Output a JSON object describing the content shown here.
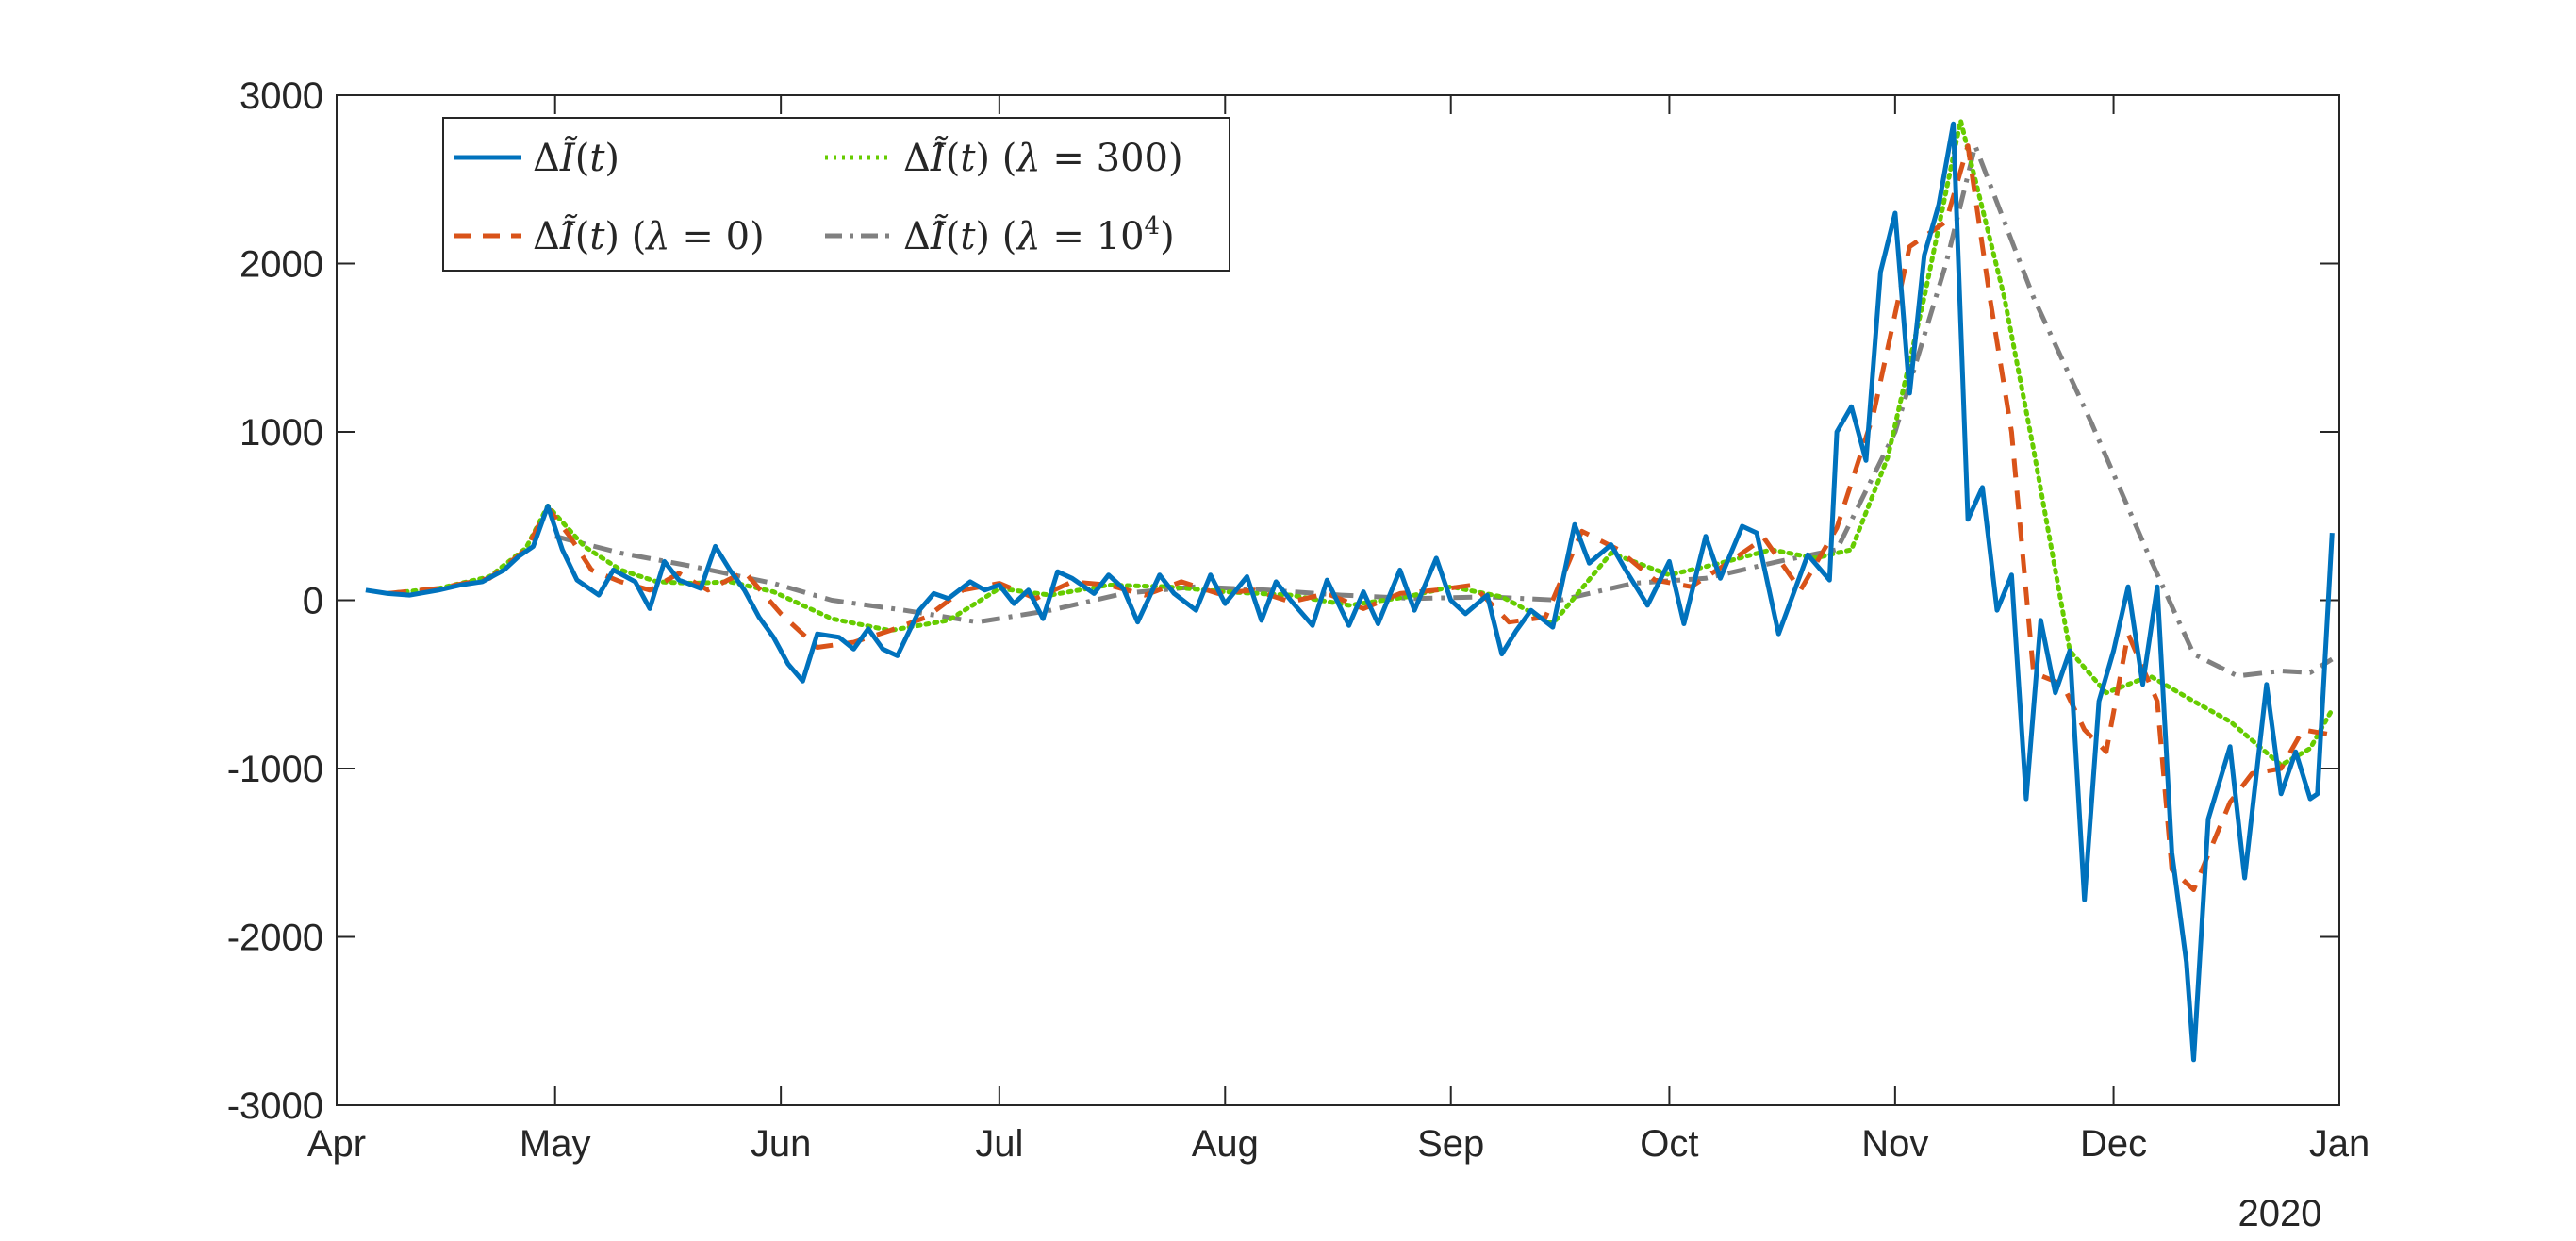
{
  "chart_data": {
    "type": "line",
    "title": "",
    "xlabel": "",
    "ylabel": "",
    "year_label": "2020",
    "x_axis": {
      "ticks": [
        "2020-04-01",
        "2020-05-01",
        "2020-06-01",
        "2020-07-01",
        "2020-08-01",
        "2020-09-01",
        "2020-10-01",
        "2020-11-01",
        "2020-12-01",
        "2021-01-01"
      ],
      "tick_labels": [
        "Apr",
        "May",
        "Jun",
        "Jul",
        "Aug",
        "Sep",
        "Oct",
        "Nov",
        "Dec",
        "Jan"
      ],
      "range": [
        "2020-04-01",
        "2021-01-01"
      ]
    },
    "y_axis": {
      "range": [
        -3000,
        3000
      ],
      "ticks": [
        -3000,
        -2000,
        -1000,
        0,
        1000,
        2000,
        3000
      ],
      "tick_labels": [
        "-3000",
        "-2000",
        "-1000",
        "0",
        "1000",
        "2000",
        "3000"
      ]
    },
    "grid": false,
    "legend_position": "top-left",
    "series": [
      {
        "name": "ΔĨ(t)",
        "color": "#0072BD",
        "style": "solid",
        "points": [
          [
            "2020-04-05",
            60
          ],
          [
            "2020-04-08",
            40
          ],
          [
            "2020-04-11",
            30
          ],
          [
            "2020-04-15",
            60
          ],
          [
            "2020-04-18",
            90
          ],
          [
            "2020-04-21",
            110
          ],
          [
            "2020-04-24",
            180
          ],
          [
            "2020-04-26",
            260
          ],
          [
            "2020-04-28",
            320
          ],
          [
            "2020-04-30",
            560
          ],
          [
            "2020-05-02",
            300
          ],
          [
            "2020-05-04",
            120
          ],
          [
            "2020-05-07",
            30
          ],
          [
            "2020-05-09",
            180
          ],
          [
            "2020-05-12",
            110
          ],
          [
            "2020-05-14",
            -50
          ],
          [
            "2020-05-16",
            230
          ],
          [
            "2020-05-18",
            120
          ],
          [
            "2020-05-21",
            70
          ],
          [
            "2020-05-23",
            320
          ],
          [
            "2020-05-25",
            180
          ],
          [
            "2020-05-27",
            60
          ],
          [
            "2020-05-29",
            -100
          ],
          [
            "2020-05-31",
            -220
          ],
          [
            "2020-06-02",
            -380
          ],
          [
            "2020-06-04",
            -480
          ],
          [
            "2020-06-06",
            -200
          ],
          [
            "2020-06-09",
            -220
          ],
          [
            "2020-06-11",
            -290
          ],
          [
            "2020-06-13",
            -170
          ],
          [
            "2020-06-15",
            -290
          ],
          [
            "2020-06-17",
            -330
          ],
          [
            "2020-06-20",
            -60
          ],
          [
            "2020-06-22",
            40
          ],
          [
            "2020-06-24",
            10
          ],
          [
            "2020-06-27",
            110
          ],
          [
            "2020-06-29",
            60
          ],
          [
            "2020-07-01",
            90
          ],
          [
            "2020-07-03",
            -20
          ],
          [
            "2020-07-05",
            60
          ],
          [
            "2020-07-07",
            -110
          ],
          [
            "2020-07-09",
            170
          ],
          [
            "2020-07-11",
            130
          ],
          [
            "2020-07-14",
            40
          ],
          [
            "2020-07-16",
            150
          ],
          [
            "2020-07-18",
            70
          ],
          [
            "2020-07-20",
            -130
          ],
          [
            "2020-07-23",
            150
          ],
          [
            "2020-07-25",
            40
          ],
          [
            "2020-07-28",
            -60
          ],
          [
            "2020-07-30",
            150
          ],
          [
            "2020-08-01",
            -20
          ],
          [
            "2020-08-04",
            140
          ],
          [
            "2020-08-06",
            -120
          ],
          [
            "2020-08-08",
            110
          ],
          [
            "2020-08-10",
            0
          ],
          [
            "2020-08-13",
            -150
          ],
          [
            "2020-08-15",
            120
          ],
          [
            "2020-08-18",
            -150
          ],
          [
            "2020-08-20",
            50
          ],
          [
            "2020-08-22",
            -140
          ],
          [
            "2020-08-25",
            180
          ],
          [
            "2020-08-27",
            -60
          ],
          [
            "2020-08-30",
            250
          ],
          [
            "2020-09-01",
            0
          ],
          [
            "2020-09-03",
            -80
          ],
          [
            "2020-09-06",
            30
          ],
          [
            "2020-09-08",
            -320
          ],
          [
            "2020-09-10",
            -180
          ],
          [
            "2020-09-12",
            -60
          ],
          [
            "2020-09-15",
            -160
          ],
          [
            "2020-09-18",
            450
          ],
          [
            "2020-09-20",
            220
          ],
          [
            "2020-09-23",
            330
          ],
          [
            "2020-09-25",
            180
          ],
          [
            "2020-09-28",
            -30
          ],
          [
            "2020-10-01",
            230
          ],
          [
            "2020-10-03",
            -140
          ],
          [
            "2020-10-06",
            380
          ],
          [
            "2020-10-08",
            130
          ],
          [
            "2020-10-11",
            440
          ],
          [
            "2020-10-13",
            400
          ],
          [
            "2020-10-16",
            -200
          ],
          [
            "2020-10-20",
            270
          ],
          [
            "2020-10-23",
            120
          ],
          [
            "2020-10-24",
            1000
          ],
          [
            "2020-10-26",
            1150
          ],
          [
            "2020-10-28",
            830
          ],
          [
            "2020-10-30",
            1950
          ],
          [
            "2020-11-01",
            2300
          ],
          [
            "2020-11-03",
            1230
          ],
          [
            "2020-11-05",
            2050
          ],
          [
            "2020-11-07",
            2350
          ],
          [
            "2020-11-09",
            2830
          ],
          [
            "2020-11-11",
            480
          ],
          [
            "2020-11-13",
            670
          ],
          [
            "2020-11-15",
            -60
          ],
          [
            "2020-11-17",
            150
          ],
          [
            "2020-11-19",
            -1180
          ],
          [
            "2020-11-21",
            -120
          ],
          [
            "2020-11-23",
            -550
          ],
          [
            "2020-11-25",
            -300
          ],
          [
            "2020-11-27",
            -1780
          ],
          [
            "2020-11-29",
            -600
          ],
          [
            "2020-12-01",
            -300
          ],
          [
            "2020-12-03",
            80
          ],
          [
            "2020-12-05",
            -500
          ],
          [
            "2020-12-07",
            80
          ],
          [
            "2020-12-09",
            -1500
          ],
          [
            "2020-12-11",
            -2150
          ],
          [
            "2020-12-12",
            -2730
          ],
          [
            "2020-12-14",
            -1300
          ],
          [
            "2020-12-17",
            -870
          ],
          [
            "2020-12-19",
            -1650
          ],
          [
            "2020-12-22",
            -500
          ],
          [
            "2020-12-24",
            -1150
          ],
          [
            "2020-12-26",
            -900
          ],
          [
            "2020-12-28",
            -1180
          ],
          [
            "2020-12-29",
            -1150
          ],
          [
            "2020-12-31",
            400
          ]
        ]
      },
      {
        "name": "ΔĨ̂(t) (λ = 0)",
        "color": "#D95319",
        "style": "dashed",
        "points": [
          [
            "2020-04-08",
            40
          ],
          [
            "2020-04-15",
            70
          ],
          [
            "2020-04-22",
            130
          ],
          [
            "2020-04-27",
            300
          ],
          [
            "2020-04-30",
            550
          ],
          [
            "2020-05-03",
            380
          ],
          [
            "2020-05-06",
            180
          ],
          [
            "2020-05-10",
            110
          ],
          [
            "2020-05-14",
            60
          ],
          [
            "2020-05-18",
            160
          ],
          [
            "2020-05-22",
            60
          ],
          [
            "2020-05-27",
            170
          ],
          [
            "2020-06-01",
            -80
          ],
          [
            "2020-06-06",
            -280
          ],
          [
            "2020-06-11",
            -250
          ],
          [
            "2020-06-16",
            -180
          ],
          [
            "2020-06-21",
            -100
          ],
          [
            "2020-06-26",
            60
          ],
          [
            "2020-07-01",
            100
          ],
          [
            "2020-07-06",
            10
          ],
          [
            "2020-07-11",
            110
          ],
          [
            "2020-07-16",
            90
          ],
          [
            "2020-07-21",
            30
          ],
          [
            "2020-07-26",
            110
          ],
          [
            "2020-07-31",
            40
          ],
          [
            "2020-08-05",
            60
          ],
          [
            "2020-08-10",
            -10
          ],
          [
            "2020-08-15",
            40
          ],
          [
            "2020-08-20",
            -50
          ],
          [
            "2020-08-25",
            40
          ],
          [
            "2020-08-30",
            60
          ],
          [
            "2020-09-04",
            90
          ],
          [
            "2020-09-09",
            -130
          ],
          [
            "2020-09-14",
            -100
          ],
          [
            "2020-09-19",
            410
          ],
          [
            "2020-09-24",
            300
          ],
          [
            "2020-09-29",
            120
          ],
          [
            "2020-10-04",
            80
          ],
          [
            "2020-10-09",
            220
          ],
          [
            "2020-10-14",
            370
          ],
          [
            "2020-10-19",
            60
          ],
          [
            "2020-10-24",
            430
          ],
          [
            "2020-10-29",
            1100
          ],
          [
            "2020-11-03",
            2100
          ],
          [
            "2020-11-08",
            2250
          ],
          [
            "2020-11-11",
            2700
          ],
          [
            "2020-11-14",
            1800
          ],
          [
            "2020-11-17",
            1000
          ],
          [
            "2020-11-20",
            -430
          ],
          [
            "2020-11-24",
            -500
          ],
          [
            "2020-11-27",
            -770
          ],
          [
            "2020-11-30",
            -900
          ],
          [
            "2020-12-03",
            -200
          ],
          [
            "2020-12-07",
            -600
          ],
          [
            "2020-12-09",
            -1600
          ],
          [
            "2020-12-12",
            -1720
          ],
          [
            "2020-12-17",
            -1200
          ],
          [
            "2020-12-20",
            -1030
          ],
          [
            "2020-12-24",
            -1000
          ],
          [
            "2020-12-27",
            -770
          ],
          [
            "2020-12-31",
            -800
          ]
        ]
      },
      {
        "name": "ΔĨ̂(t) (λ = 300)",
        "color": "#66CC00",
        "style": "dotted",
        "points": [
          [
            "2020-04-08",
            40
          ],
          [
            "2020-04-15",
            70
          ],
          [
            "2020-04-22",
            140
          ],
          [
            "2020-04-27",
            310
          ],
          [
            "2020-04-30",
            560
          ],
          [
            "2020-05-05",
            320
          ],
          [
            "2020-05-10",
            180
          ],
          [
            "2020-05-15",
            110
          ],
          [
            "2020-05-20",
            100
          ],
          [
            "2020-05-25",
            110
          ],
          [
            "2020-05-31",
            50
          ],
          [
            "2020-06-08",
            -110
          ],
          [
            "2020-06-16",
            -180
          ],
          [
            "2020-06-24",
            -120
          ],
          [
            "2020-07-01",
            70
          ],
          [
            "2020-07-08",
            30
          ],
          [
            "2020-07-16",
            90
          ],
          [
            "2020-07-24",
            80
          ],
          [
            "2020-08-01",
            50
          ],
          [
            "2020-08-10",
            30
          ],
          [
            "2020-08-18",
            -30
          ],
          [
            "2020-08-26",
            20
          ],
          [
            "2020-09-01",
            80
          ],
          [
            "2020-09-08",
            20
          ],
          [
            "2020-09-15",
            -140
          ],
          [
            "2020-09-23",
            280
          ],
          [
            "2020-10-01",
            150
          ],
          [
            "2020-10-08",
            220
          ],
          [
            "2020-10-15",
            300
          ],
          [
            "2020-10-21",
            250
          ],
          [
            "2020-10-26",
            300
          ],
          [
            "2020-10-31",
            850
          ],
          [
            "2020-11-05",
            1800
          ],
          [
            "2020-11-10",
            2850
          ],
          [
            "2020-11-16",
            1800
          ],
          [
            "2020-11-20",
            900
          ],
          [
            "2020-11-25",
            -300
          ],
          [
            "2020-11-30",
            -550
          ],
          [
            "2020-12-06",
            -450
          ],
          [
            "2020-12-12",
            -600
          ],
          [
            "2020-12-17",
            -720
          ],
          [
            "2020-12-24",
            -980
          ],
          [
            "2020-12-28",
            -880
          ],
          [
            "2020-12-31",
            -650
          ]
        ]
      },
      {
        "name": "ΔĨ̂(t) (λ = 10⁴)",
        "color": "#808080",
        "style": "dashdot",
        "points": [
          [
            "2020-05-01",
            380
          ],
          [
            "2020-05-10",
            280
          ],
          [
            "2020-05-20",
            200
          ],
          [
            "2020-05-31",
            100
          ],
          [
            "2020-06-08",
            0
          ],
          [
            "2020-06-18",
            -60
          ],
          [
            "2020-06-28",
            -130
          ],
          [
            "2020-07-08",
            -60
          ],
          [
            "2020-07-18",
            40
          ],
          [
            "2020-07-28",
            80
          ],
          [
            "2020-08-07",
            60
          ],
          [
            "2020-08-17",
            30
          ],
          [
            "2020-08-27",
            10
          ],
          [
            "2020-09-06",
            20
          ],
          [
            "2020-09-16",
            0
          ],
          [
            "2020-09-26",
            100
          ],
          [
            "2020-10-06",
            130
          ],
          [
            "2020-10-16",
            230
          ],
          [
            "2020-10-24",
            300
          ],
          [
            "2020-11-01",
            1000
          ],
          [
            "2020-11-08",
            2000
          ],
          [
            "2020-11-12",
            2700
          ],
          [
            "2020-11-20",
            1800
          ],
          [
            "2020-11-28",
            1050
          ],
          [
            "2020-12-06",
            250
          ],
          [
            "2020-12-12",
            -320
          ],
          [
            "2020-12-18",
            -450
          ],
          [
            "2020-12-24",
            -420
          ],
          [
            "2020-12-28",
            -430
          ],
          [
            "2020-12-31",
            -350
          ]
        ]
      }
    ]
  }
}
